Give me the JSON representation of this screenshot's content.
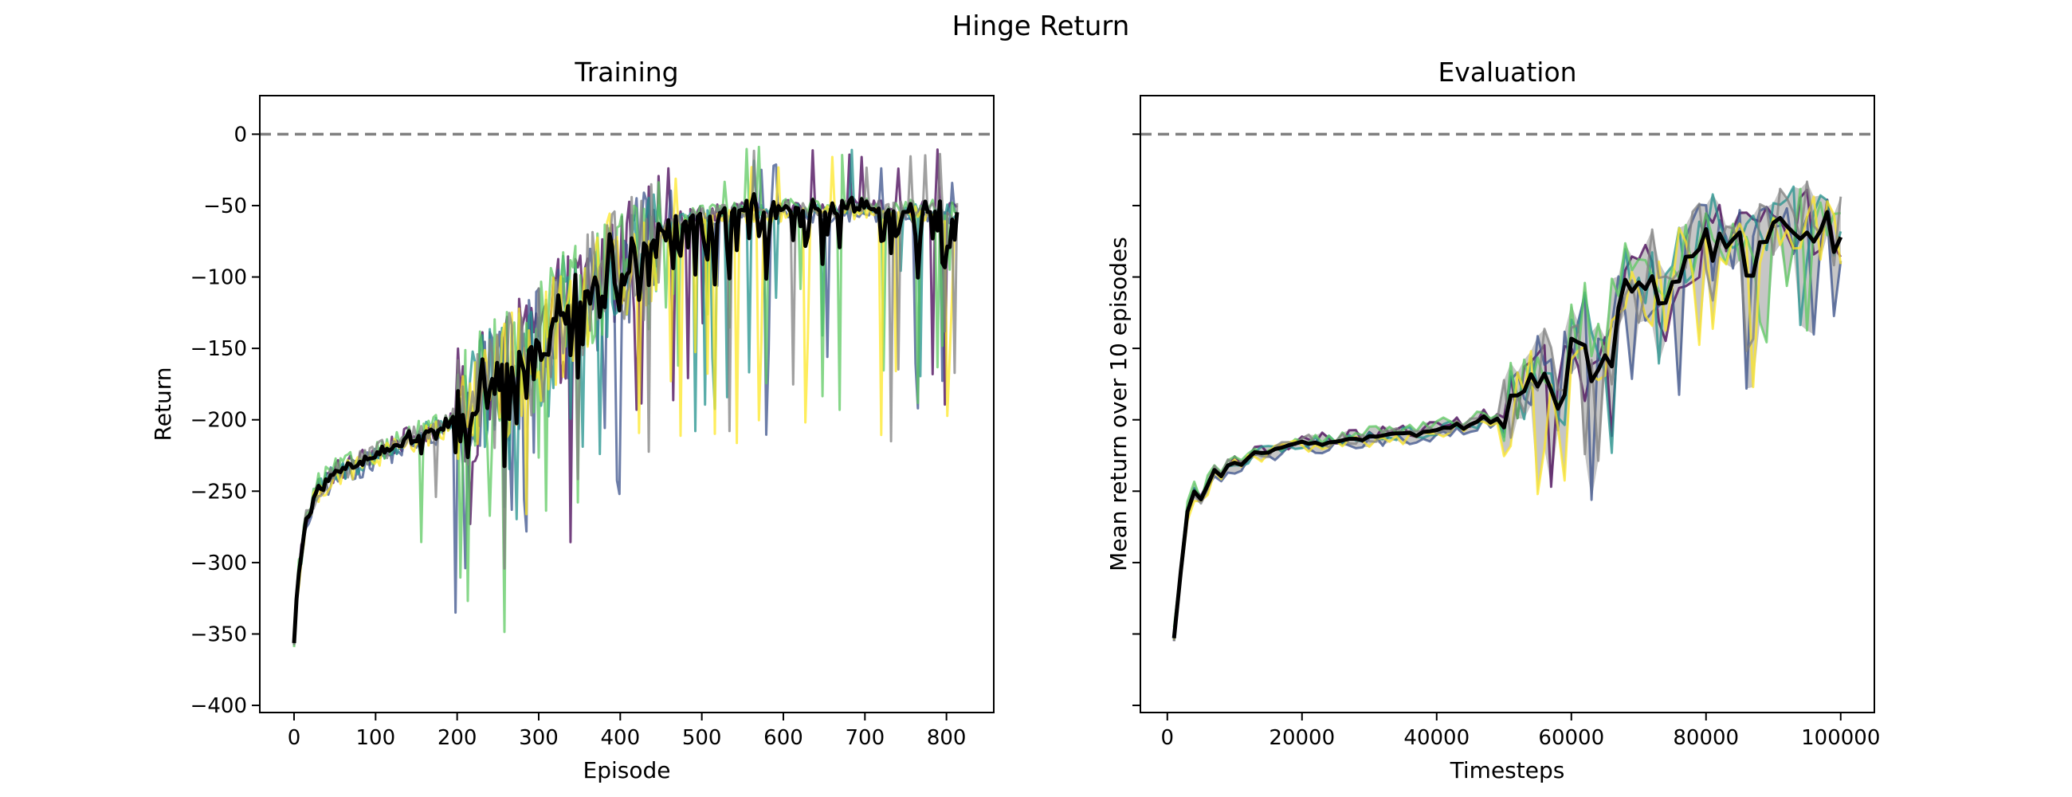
{
  "figure": {
    "suptitle": "Hinge Return"
  },
  "palette": {
    "runs": [
      "#440154",
      "#3b528b",
      "#21918c",
      "#5ec962",
      "#fde725",
      "#808080"
    ],
    "mean": "#000000",
    "reference": "#808080"
  },
  "chart_data": [
    {
      "type": "line",
      "title": "Training",
      "xlabel": "Episode",
      "ylabel": "Return",
      "xlim": [
        -42,
        858
      ],
      "ylim": [
        -405,
        27
      ],
      "xticks": [
        0,
        100,
        200,
        300,
        400,
        500,
        600,
        700,
        800
      ],
      "yticks": [
        0,
        -50,
        -100,
        -150,
        -200,
        -250,
        -300,
        -350,
        -400
      ],
      "reference_line": {
        "y": 0,
        "style": "dashed"
      },
      "grid": false,
      "mean_anchors": {
        "x": [
          0,
          5,
          15,
          30,
          50,
          100,
          150,
          180,
          210,
          240,
          270,
          300,
          330,
          360,
          390,
          420,
          450,
          480,
          520,
          600,
          700,
          815
        ],
        "y": [
          -355,
          -310,
          -270,
          -248,
          -238,
          -225,
          -212,
          -205,
          -193,
          -180,
          -165,
          -150,
          -130,
          -112,
          -95,
          -80,
          -68,
          -60,
          -56,
          -54,
          -53,
          -55
        ]
      },
      "series_summary": "6 individual runs plus a bold black mean line; runs are noisy with downward spikes, final return approx -55"
    },
    {
      "type": "line",
      "title": "Evaluation",
      "xlabel": "Timesteps",
      "ylabel": "Mean return over 10 episodes",
      "xlim": [
        -4000,
        105000
      ],
      "ylim": [
        -405,
        27
      ],
      "xticks": [
        0,
        20000,
        40000,
        60000,
        80000,
        100000
      ],
      "yticks": [
        0,
        -50,
        -100,
        -150,
        -200,
        -250,
        -300,
        -350,
        -400
      ],
      "ytick_labels_visible": false,
      "reference_line": {
        "y": 0,
        "style": "dashed"
      },
      "grid": false,
      "shaded_band": true,
      "mean_anchors": {
        "x": [
          1000,
          2000,
          3000,
          4000,
          5000,
          7000,
          10000,
          15000,
          20000,
          25000,
          30000,
          35000,
          40000,
          45000,
          50000,
          52000,
          54000,
          56000,
          58000,
          60000,
          62000,
          64000,
          66000,
          68000,
          70000,
          72000,
          74000,
          76000,
          78000,
          80000,
          83000,
          86000,
          90000,
          95000,
          100000
        ],
        "y": [
          -352,
          -310,
          -265,
          -250,
          -255,
          -238,
          -230,
          -222,
          -216,
          -215,
          -212,
          -210,
          -207,
          -202,
          -196,
          -185,
          -168,
          -155,
          -180,
          -140,
          -135,
          -150,
          -130,
          -105,
          -110,
          -95,
          -120,
          -85,
          -78,
          -70,
          -68,
          -62,
          -59,
          -60,
          -68
        ]
      },
      "series_summary": "6 individual runs with gray min-max band and a bold black mean line; final value approx -68 at 100000 timesteps"
    }
  ]
}
